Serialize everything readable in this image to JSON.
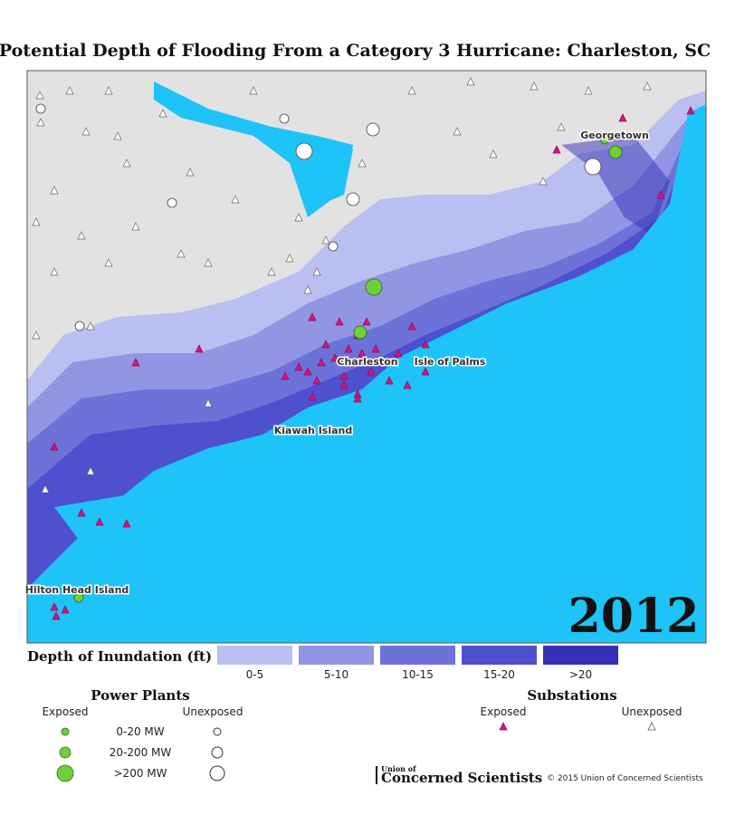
{
  "header": {
    "title": "Potential Depth of Flooding From a Category 3 Hurricane: Charleston, SC"
  },
  "map": {
    "year": "2012",
    "places": [
      "Georgetown",
      "Charleston",
      "Isle of Palms",
      "Kiawah Island",
      "Hilton Head Island"
    ],
    "land_color": "#e2e2e2",
    "water_color": "#1ec3f8"
  },
  "depth_legend": {
    "title": "Depth of Inundation (ft)",
    "bins": [
      {
        "label": "0-5",
        "color": "#b9bff0"
      },
      {
        "label": "5-10",
        "color": "#9096e4"
      },
      {
        "label": "10-15",
        "color": "#6d72d8"
      },
      {
        "label": "15-20",
        "color": "#4e50cf"
      },
      {
        "label": ">20",
        "color": "#3330b5"
      }
    ]
  },
  "power_plants": {
    "title": "Power Plants",
    "exposed": "Exposed",
    "unexposed": "Unexposed",
    "sizes": [
      "0-20 MW",
      "20-200 MW",
      ">200 MW"
    ],
    "exposed_color": "#6fcf3a"
  },
  "substations": {
    "title": "Substations",
    "exposed": "Exposed",
    "unexposed": "Unexposed",
    "exposed_color": "#d6137f"
  },
  "footer": {
    "logo_small": "Union of",
    "logo": "Concerned Scientists",
    "copyright": "© 2015 Union of Concerned Scientists"
  }
}
